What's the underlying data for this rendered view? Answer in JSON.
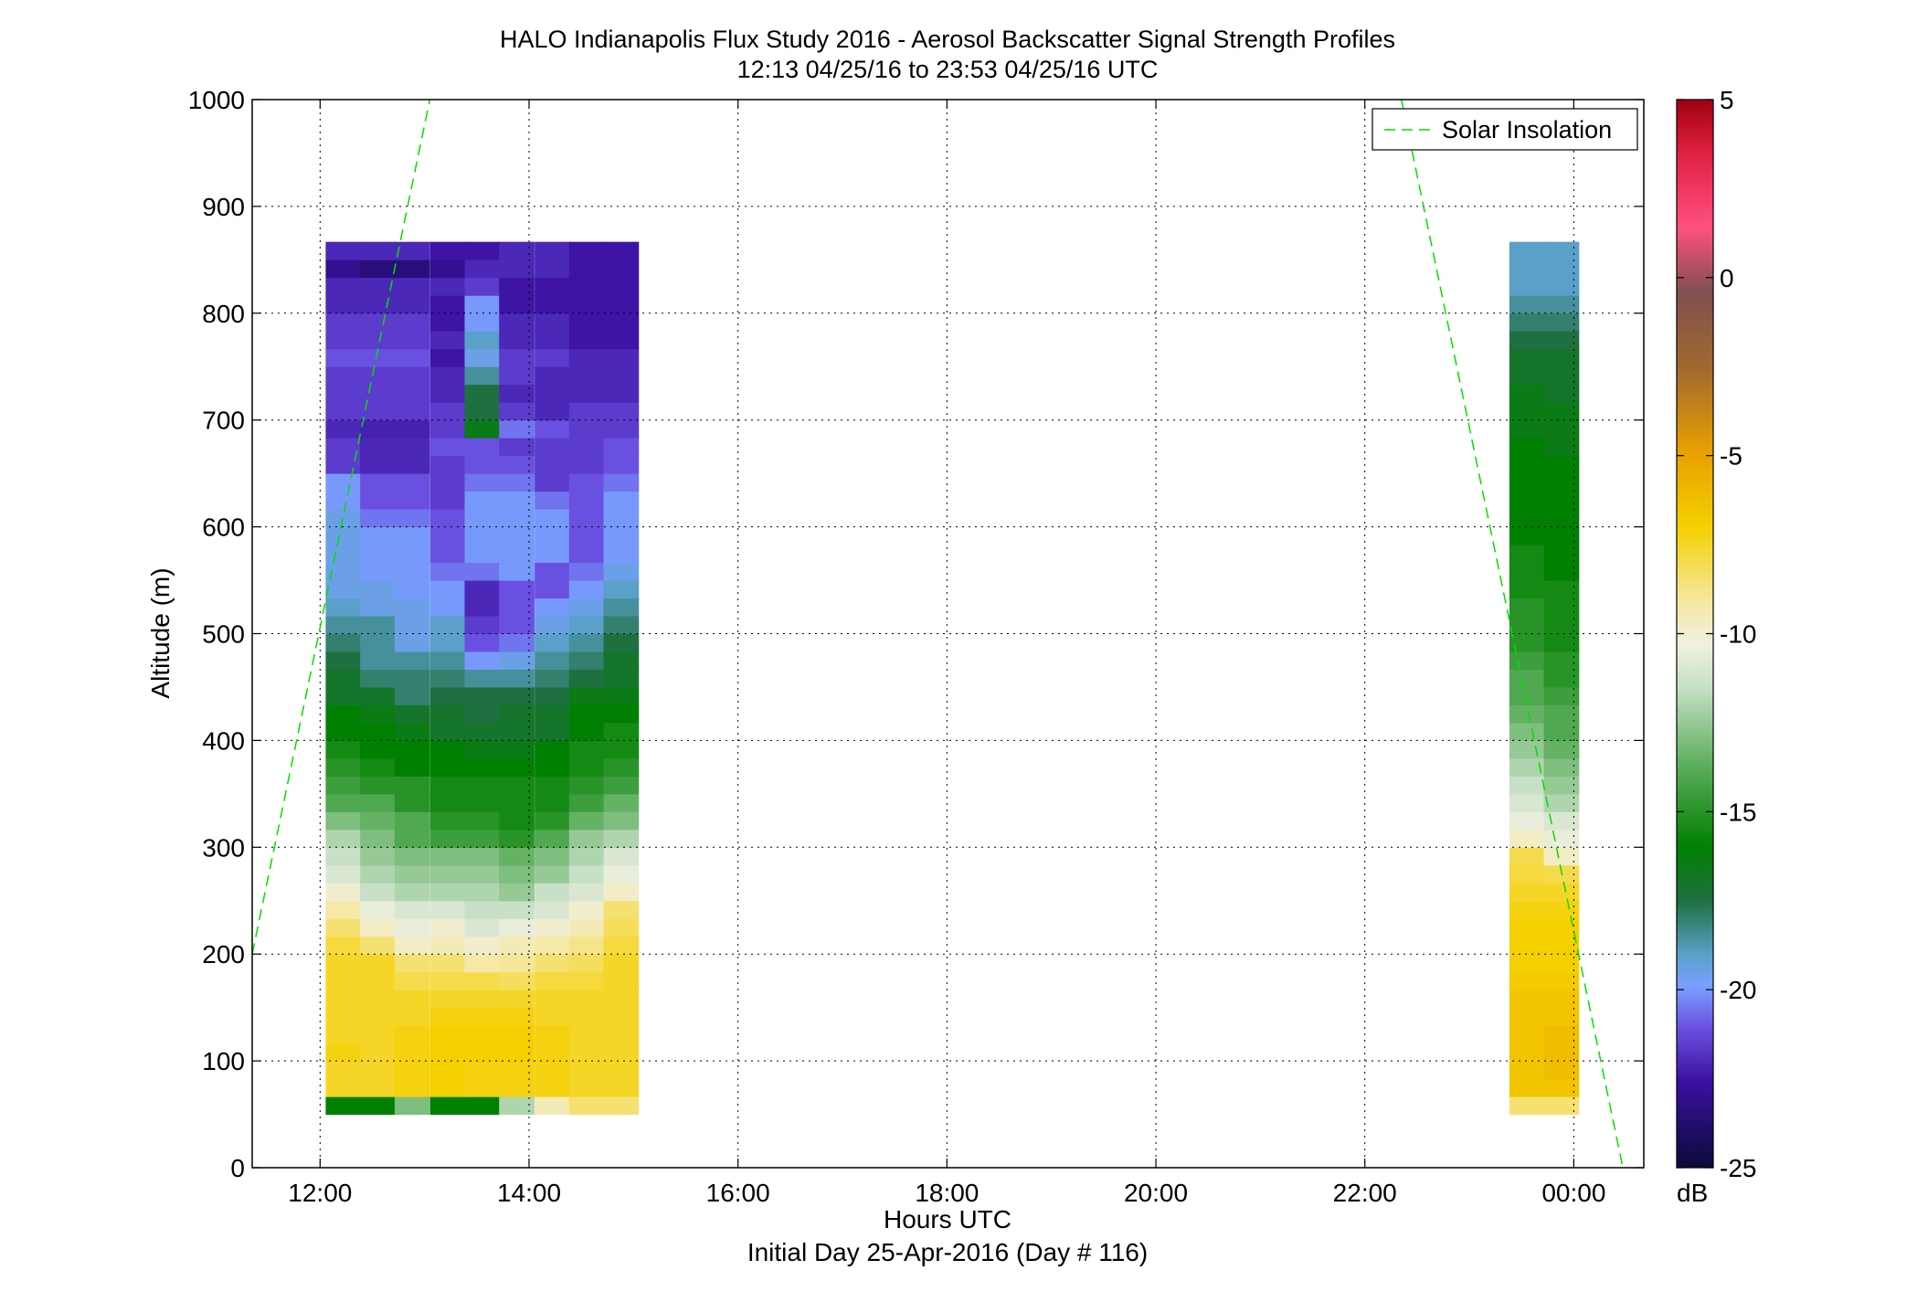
{
  "chart_data": {
    "type": "heatmap",
    "title": "HALO Indianapolis Flux Study 2016 - Aerosol Backscatter Signal Strength Profiles",
    "subtitle": "12:13 04/25/16 to 23:53 04/25/16  UTC",
    "xlabel": "Hours UTC",
    "xlabel2": "Initial Day 25-Apr-2016 (Day # 116)",
    "ylabel": "Altitude (m)",
    "x_unit": "hours",
    "xlim": [
      11.35,
      24.67
    ],
    "ylim": [
      0,
      1000
    ],
    "x_ticks": [
      12,
      14,
      16,
      18,
      20,
      22,
      24
    ],
    "x_tick_labels": [
      "12:00",
      "14:00",
      "16:00",
      "18:00",
      "20:00",
      "22:00",
      "00:00"
    ],
    "y_ticks": [
      0,
      100,
      200,
      300,
      400,
      500,
      600,
      700,
      800,
      900,
      1000
    ],
    "y_tick_labels": [
      "0",
      "100",
      "200",
      "300",
      "400",
      "500",
      "600",
      "700",
      "800",
      "900",
      "1000"
    ],
    "grid": true,
    "legend_position": "top-right",
    "legend": [
      "Solar Insolation"
    ],
    "colorbar": {
      "unit": "dB",
      "range": [
        -25,
        5
      ],
      "ticks": [
        5,
        0,
        -5,
        -10,
        -15,
        -20,
        -25
      ],
      "tick_labels": [
        "5",
        "0",
        "-5",
        "-10",
        "-15",
        "-20",
        "-25"
      ]
    },
    "heatmap": {
      "altitude_bins_start": 50,
      "altitude_bin_size": 16.67,
      "profiles": [
        {
          "time": 12.22,
          "values": [
            -16,
            -7.5,
            -7.5,
            -7.2,
            -7.5,
            -7.5,
            -7.5,
            -7.5,
            -7.5,
            -7.8,
            -8.5,
            -9.2,
            -10,
            -11,
            -11.5,
            -12,
            -13,
            -14,
            -14.5,
            -15,
            -15.5,
            -16,
            -16,
            -17,
            -17,
            -17.5,
            -18,
            -18.5,
            -19,
            -19.5,
            -19.5,
            -19.5,
            -19.5,
            -19.5,
            -20,
            -20,
            -21.5,
            -21.5,
            -22,
            -21.5,
            -21.5,
            -21.5,
            -21,
            -21.5,
            -21.5,
            -22,
            -22,
            -23,
            -22
          ]
        },
        {
          "time": 12.55,
          "values": [
            -16,
            -7.5,
            -7.5,
            -7.5,
            -7.5,
            -7.5,
            -7.5,
            -7.5,
            -7.5,
            -8.5,
            -9.8,
            -10.5,
            -11.5,
            -12,
            -12.5,
            -13,
            -13.5,
            -14,
            -15,
            -15.5,
            -16,
            -16,
            -16.5,
            -17,
            -18,
            -18.5,
            -18.5,
            -18.5,
            -19.5,
            -19.5,
            -20,
            -20,
            -20,
            -20.5,
            -21,
            -21,
            -22,
            -22,
            -22.2,
            -21.5,
            -21.5,
            -21.5,
            -21,
            -21.5,
            -21.5,
            -22,
            -22,
            -23.5,
            -22
          ]
        },
        {
          "time": 12.88,
          "values": [
            -13,
            -7.2,
            -7.2,
            -7.2,
            -7.2,
            -7.5,
            -7.5,
            -8,
            -8.5,
            -9.8,
            -10.5,
            -11,
            -12,
            -12.5,
            -13,
            -14,
            -14,
            -15,
            -15,
            -16,
            -16,
            -16.5,
            -17,
            -18,
            -18,
            -18.5,
            -19.5,
            -19.5,
            -19.5,
            -20,
            -20,
            -20,
            -20,
            -20.5,
            -21,
            -21,
            -22,
            -22,
            -22.2,
            -21.5,
            -21.5,
            -21.5,
            -21,
            -21.5,
            -21.5,
            -22,
            -22,
            -23.5,
            -22
          ]
        },
        {
          "time": 13.22,
          "values": [
            -16,
            -7,
            -7,
            -7,
            -7,
            -7.2,
            -7.5,
            -8,
            -8.5,
            -9.5,
            -10,
            -11,
            -12,
            -12.5,
            -13,
            -14.5,
            -15,
            -15.5,
            -15.5,
            -16,
            -16,
            -17,
            -17,
            -17.5,
            -18,
            -18.5,
            -19,
            -19,
            -20,
            -20,
            -20.5,
            -21,
            -21,
            -21,
            -21.5,
            -21.5,
            -21.5,
            -21,
            -21.5,
            -21.5,
            -22,
            -22,
            -22.5,
            -22,
            -22.5,
            -22.5,
            -22,
            -23,
            -22.5
          ]
        },
        {
          "time": 13.55,
          "values": [
            -16,
            -7.2,
            -7.2,
            -7,
            -7,
            -7.2,
            -7.5,
            -8,
            -9.2,
            -10,
            -11,
            -11.5,
            -12,
            -12.5,
            -13,
            -14.5,
            -15,
            -15.5,
            -15.5,
            -16,
            -16.5,
            -17,
            -17.5,
            -17.5,
            -18.5,
            -20,
            -21,
            -21.5,
            -22,
            -22,
            -20.5,
            -20,
            -20,
            -20,
            -20,
            -20.5,
            -21,
            -21,
            -16.5,
            -17.5,
            -17.5,
            -18.5,
            -19.5,
            -19,
            -20,
            -20,
            -21.5,
            -22,
            -22.5
          ]
        },
        {
          "time": 13.88,
          "values": [
            -12,
            -7.2,
            -7.2,
            -7,
            -7,
            -7.2,
            -7.5,
            -8.2,
            -9,
            -9.5,
            -10.5,
            -11.5,
            -12.5,
            -13,
            -13.5,
            -15,
            -15.5,
            -15.5,
            -15.5,
            -16,
            -16.5,
            -17,
            -17,
            -17.5,
            -18.5,
            -19.5,
            -20.5,
            -21,
            -21,
            -21,
            -20,
            -20,
            -20,
            -20,
            -20,
            -20.5,
            -21,
            -21.5,
            -20.5,
            -21.5,
            -22,
            -21.5,
            -21.5,
            -22,
            -22,
            -22.5,
            -22.5,
            -22,
            -22
          ]
        },
        {
          "time": 14.22,
          "values": [
            -9.5,
            -7.2,
            -7.2,
            -7.2,
            -7.2,
            -7.5,
            -7.5,
            -7.8,
            -8.5,
            -9.2,
            -10,
            -11,
            -11.5,
            -12.5,
            -13,
            -14,
            -15,
            -15.5,
            -15.5,
            -16,
            -16,
            -17,
            -17,
            -17.5,
            -18,
            -18.5,
            -19,
            -19.5,
            -20,
            -21,
            -21,
            -20,
            -20,
            -20,
            -20.5,
            -21.5,
            -21.5,
            -21.5,
            -21,
            -22,
            -22,
            -22,
            -21.5,
            -22,
            -22,
            -22.5,
            -22.5,
            -22,
            -22
          ]
        },
        {
          "time": 14.55,
          "values": [
            -8.5,
            -7.5,
            -7.5,
            -7.5,
            -7.5,
            -7.5,
            -7.5,
            -7.8,
            -8.2,
            -8.8,
            -9.5,
            -10,
            -11,
            -11.5,
            -12,
            -12.5,
            -13.5,
            -14.5,
            -15,
            -15.5,
            -15.5,
            -16,
            -16,
            -16.5,
            -17.5,
            -18,
            -18.5,
            -19,
            -19.5,
            -20,
            -20.5,
            -21,
            -21,
            -21,
            -21,
            -21,
            -21.5,
            -21.5,
            -21.5,
            -21.5,
            -22,
            -22,
            -22,
            -22.5,
            -22.5,
            -22.5,
            -22.5,
            -22.5,
            -22.5
          ]
        },
        {
          "time": 14.88,
          "values": [
            -8.5,
            -7.5,
            -7.5,
            -7.5,
            -7.5,
            -7.5,
            -7.5,
            -7.5,
            -7.5,
            -7.8,
            -8.2,
            -8.5,
            -9.8,
            -10.5,
            -11,
            -12,
            -13,
            -13.5,
            -14.5,
            -15,
            -15.5,
            -15.5,
            -16,
            -16.5,
            -17,
            -17,
            -17.5,
            -18,
            -18.5,
            -19,
            -19.5,
            -20,
            -20,
            -20,
            -20,
            -20.5,
            -21,
            -21,
            -21.5,
            -21.5,
            -22,
            -22,
            -22,
            -22.5,
            -22.5,
            -22.5,
            -22.5,
            -22.5,
            -22.5
          ]
        },
        {
          "time": 23.55,
          "values": [
            -8.5,
            -6.5,
            -6.5,
            -6.5,
            -6.5,
            -6.5,
            -6.5,
            -6.8,
            -7,
            -7,
            -7,
            -7.2,
            -7.5,
            -7.8,
            -8,
            -9.8,
            -10.5,
            -11,
            -11.5,
            -12,
            -12.5,
            -13,
            -13.5,
            -14,
            -14,
            -14.5,
            -15,
            -15,
            -15,
            -15.5,
            -15.5,
            -15.5,
            -16,
            -16,
            -16,
            -16,
            -16,
            -16,
            -16.5,
            -16.5,
            -16.5,
            -17,
            -17,
            -17.5,
            -18,
            -18.5,
            -19,
            -19,
            -19
          ]
        },
        {
          "time": 23.88,
          "values": [
            -8.5,
            -6.5,
            -6.2,
            -6.2,
            -6.2,
            -6.5,
            -6.5,
            -6.8,
            -7,
            -7,
            -7,
            -7.2,
            -7.5,
            -8,
            -9.8,
            -10.5,
            -11,
            -12,
            -12.5,
            -13,
            -13.5,
            -14,
            -14,
            -14.5,
            -15,
            -15,
            -15.5,
            -15.5,
            -15.5,
            -15.5,
            -16,
            -16,
            -16,
            -16,
            -16,
            -16,
            -16,
            -16.5,
            -16.5,
            -16.5,
            -17,
            -17,
            -17,
            -17.5,
            -18,
            -18.5,
            -19,
            -19,
            -19
          ]
        }
      ]
    },
    "series": [
      {
        "name": "Solar Insolation",
        "style": "dashed",
        "color": "#00e000",
        "x": [
          11.35,
          13.05
        ],
        "y": [
          200,
          1000
        ]
      },
      {
        "name": "Solar Insolation",
        "style": "dashed",
        "color": "#00e000",
        "x": [
          22.35,
          24.47
        ],
        "y": [
          1000,
          0
        ]
      }
    ]
  }
}
